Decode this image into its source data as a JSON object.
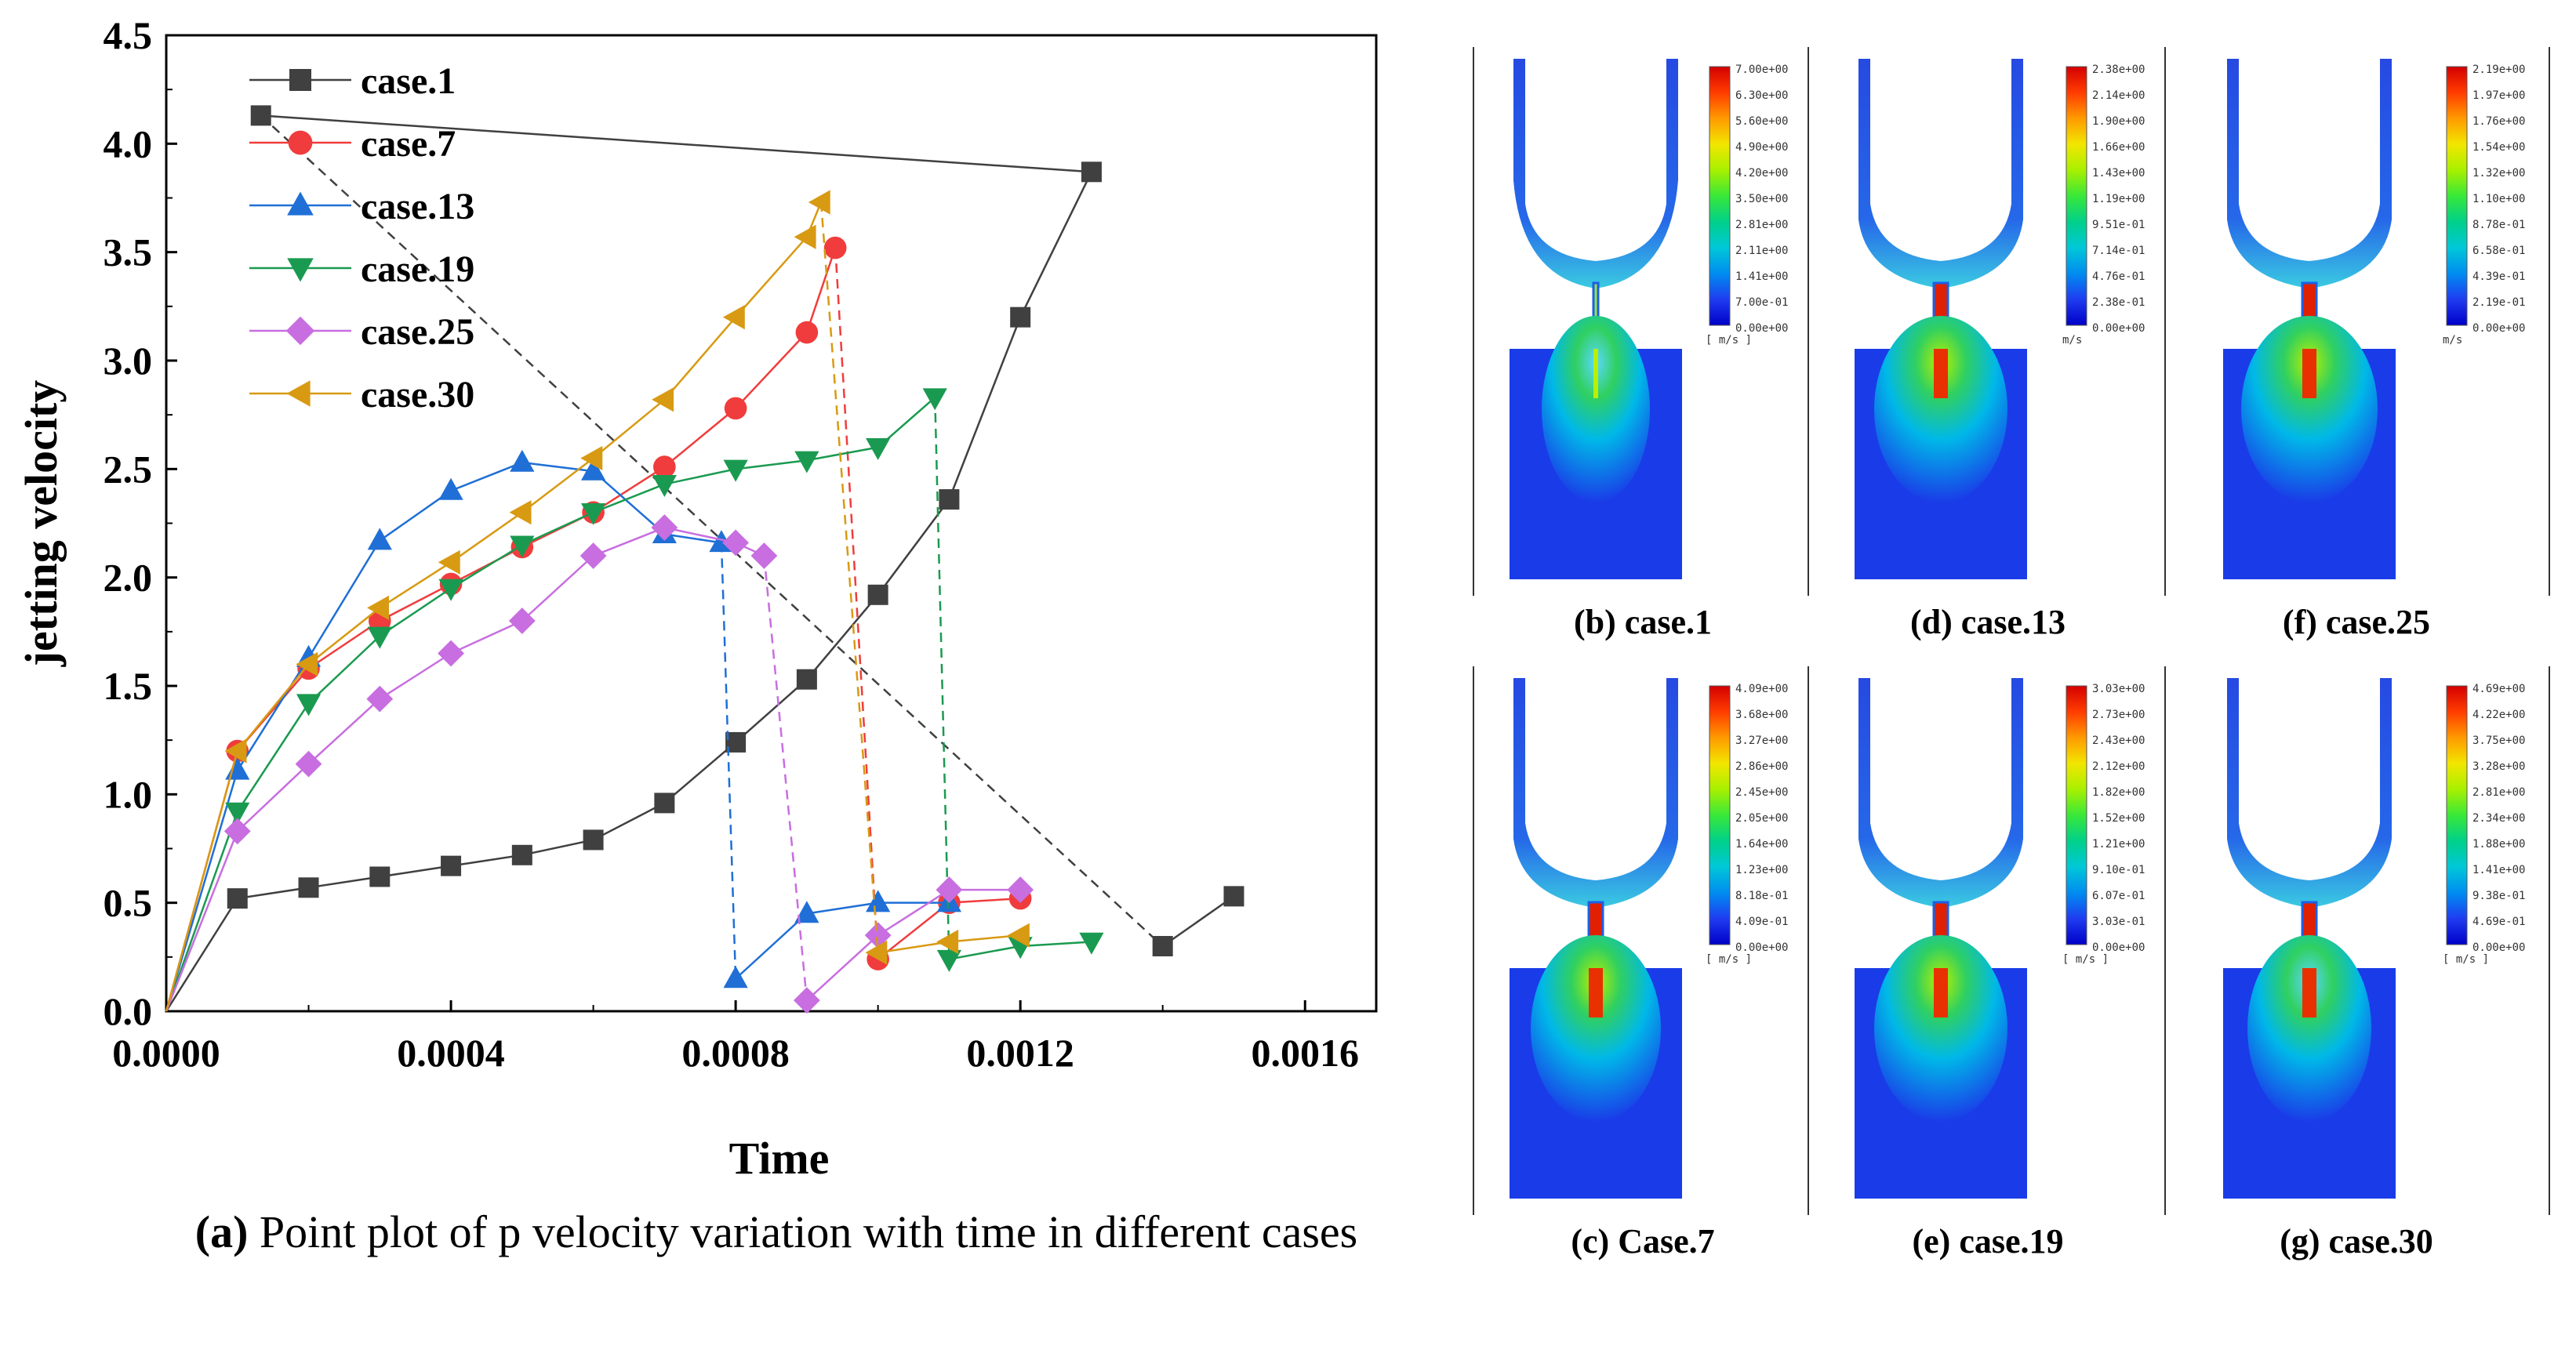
{
  "chart_data": {
    "type": "line",
    "title": "",
    "xlabel": "Time",
    "ylabel": "jetting velocity",
    "xlim": [
      0,
      0.0017
    ],
    "ylim": [
      0,
      4.5
    ],
    "x_ticks": [
      "0.0000",
      "0.0004",
      "0.0008",
      "0.0012",
      "0.0016"
    ],
    "x_tick_values": [
      0,
      0.0004,
      0.0008,
      0.0012,
      0.0016
    ],
    "y_ticks": [
      "0.0",
      "0.5",
      "1.0",
      "1.5",
      "2.0",
      "2.5",
      "3.0",
      "3.5",
      "4.0",
      "4.5"
    ],
    "y_tick_values": [
      0,
      0.5,
      1.0,
      1.5,
      2.0,
      2.5,
      3.0,
      3.5,
      4.0,
      4.5
    ],
    "legend_position": "top-left",
    "series": [
      {
        "name": "case.1",
        "color": "#404040",
        "marker": "square",
        "x": [
          0,
          0.0001,
          0.0002,
          0.0003,
          0.0004,
          0.0005,
          0.0006,
          0.0007,
          0.0008,
          0.0009,
          0.001,
          0.0011,
          0.0012,
          0.0013,
          0.000133,
          0.0014,
          0.0015
        ],
        "y": [
          0,
          0.52,
          0.57,
          0.62,
          0.67,
          0.72,
          0.79,
          0.96,
          1.24,
          1.53,
          1.92,
          2.36,
          3.2,
          3.87,
          4.13,
          0.3,
          0.53
        ]
      },
      {
        "name": "case.7",
        "color": "#f03c3c",
        "marker": "circle",
        "x": [
          0,
          0.0001,
          0.0002,
          0.0003,
          0.0004,
          0.0005,
          0.0006,
          0.0007,
          0.0008,
          0.0009,
          0.00094,
          0.001,
          0.0011,
          0.0012
        ],
        "y": [
          0,
          1.2,
          1.58,
          1.8,
          1.97,
          2.14,
          2.3,
          2.51,
          2.78,
          3.13,
          3.52,
          0.24,
          0.5,
          0.52
        ]
      },
      {
        "name": "case.13",
        "color": "#1f6fd6",
        "marker": "triangle-up",
        "x": [
          0,
          0.0001,
          0.0002,
          0.0003,
          0.0004,
          0.0005,
          0.0006,
          0.0007,
          0.00078,
          0.0008,
          0.0009,
          0.001,
          0.0011
        ],
        "y": [
          0,
          1.11,
          1.63,
          2.17,
          2.4,
          2.53,
          2.49,
          2.2,
          2.16,
          0.15,
          0.45,
          0.5,
          0.5
        ]
      },
      {
        "name": "case.19",
        "color": "#1a9a50",
        "marker": "triangle-down",
        "x": [
          0,
          0.0001,
          0.0002,
          0.0003,
          0.0004,
          0.0005,
          0.0006,
          0.0007,
          0.0008,
          0.0009,
          0.001,
          0.00108,
          0.0011,
          0.0012,
          0.0013
        ],
        "y": [
          0,
          0.92,
          1.42,
          1.73,
          1.95,
          2.15,
          2.3,
          2.43,
          2.5,
          2.54,
          2.6,
          2.83,
          0.24,
          0.3,
          0.32
        ]
      },
      {
        "name": "case.25",
        "color": "#c86ee0",
        "marker": "diamond",
        "x": [
          0,
          0.0001,
          0.0002,
          0.0003,
          0.0004,
          0.0005,
          0.0006,
          0.0007,
          0.0008,
          0.00084,
          0.0009,
          0.001,
          0.0011,
          0.0012
        ],
        "y": [
          0,
          0.83,
          1.14,
          1.44,
          1.65,
          1.8,
          2.1,
          2.23,
          2.16,
          2.1,
          0.05,
          0.35,
          0.56,
          0.56
        ]
      },
      {
        "name": "case.30",
        "color": "#d89a12",
        "marker": "triangle-left",
        "x": [
          0,
          0.0001,
          0.0002,
          0.0003,
          0.0004,
          0.0005,
          0.0006,
          0.0007,
          0.0008,
          0.0009,
          0.00092,
          0.001,
          0.0011,
          0.0012
        ],
        "y": [
          0,
          1.2,
          1.6,
          1.86,
          2.07,
          2.3,
          2.55,
          2.82,
          3.2,
          3.57,
          3.73,
          0.27,
          0.32,
          0.35
        ]
      }
    ]
  },
  "caption_a": {
    "label": "(a)",
    "text": "Point plot of p velocity variation with time in different cases"
  },
  "panels": [
    {
      "id": "b",
      "caption": "(b) case.1",
      "unit": "[ m/s ]",
      "style": "b",
      "ticks": [
        "7.00e+00",
        "6.30e+00",
        "5.60e+00",
        "4.90e+00",
        "4.20e+00",
        "3.50e+00",
        "2.81e+00",
        "2.11e+00",
        "1.41e+00",
        "7.00e-01",
        "0.00e+00"
      ]
    },
    {
      "id": "d",
      "caption": "(d) case.13",
      "unit": "m/s",
      "style": "d",
      "ticks": [
        "2.38e+00",
        "2.14e+00",
        "1.90e+00",
        "1.66e+00",
        "1.43e+00",
        "1.19e+00",
        "9.51e-01",
        "7.14e-01",
        "4.76e-01",
        "2.38e-01",
        "0.00e+00"
      ]
    },
    {
      "id": "f",
      "caption": "(f) case.25",
      "unit": "m/s",
      "style": "f",
      "ticks": [
        "2.19e+00",
        "1.97e+00",
        "1.76e+00",
        "1.54e+00",
        "1.32e+00",
        "1.10e+00",
        "8.78e-01",
        "6.58e-01",
        "4.39e-01",
        "2.19e-01",
        "0.00e+00"
      ]
    },
    {
      "id": "c",
      "caption": "(c) Case.7",
      "unit": "[ m/s ]",
      "style": "c",
      "ticks": [
        "4.09e+00",
        "3.68e+00",
        "3.27e+00",
        "2.86e+00",
        "2.45e+00",
        "2.05e+00",
        "1.64e+00",
        "1.23e+00",
        "8.18e-01",
        "4.09e-01",
        "0.00e+00"
      ]
    },
    {
      "id": "e",
      "caption": "(e) case.19",
      "unit": "[ m/s ]",
      "style": "e",
      "ticks": [
        "3.03e+00",
        "2.73e+00",
        "2.43e+00",
        "2.12e+00",
        "1.82e+00",
        "1.52e+00",
        "1.21e+00",
        "9.10e-01",
        "6.07e-01",
        "3.03e-01",
        "0.00e+00"
      ]
    },
    {
      "id": "g",
      "caption": "(g) case.30",
      "unit": "[ m/s ]",
      "style": "g",
      "ticks": [
        "4.69e+00",
        "4.22e+00",
        "3.75e+00",
        "3.28e+00",
        "2.81e+00",
        "2.34e+00",
        "1.88e+00",
        "1.41e+00",
        "9.38e-01",
        "4.69e-01",
        "0.00e+00"
      ]
    }
  ]
}
